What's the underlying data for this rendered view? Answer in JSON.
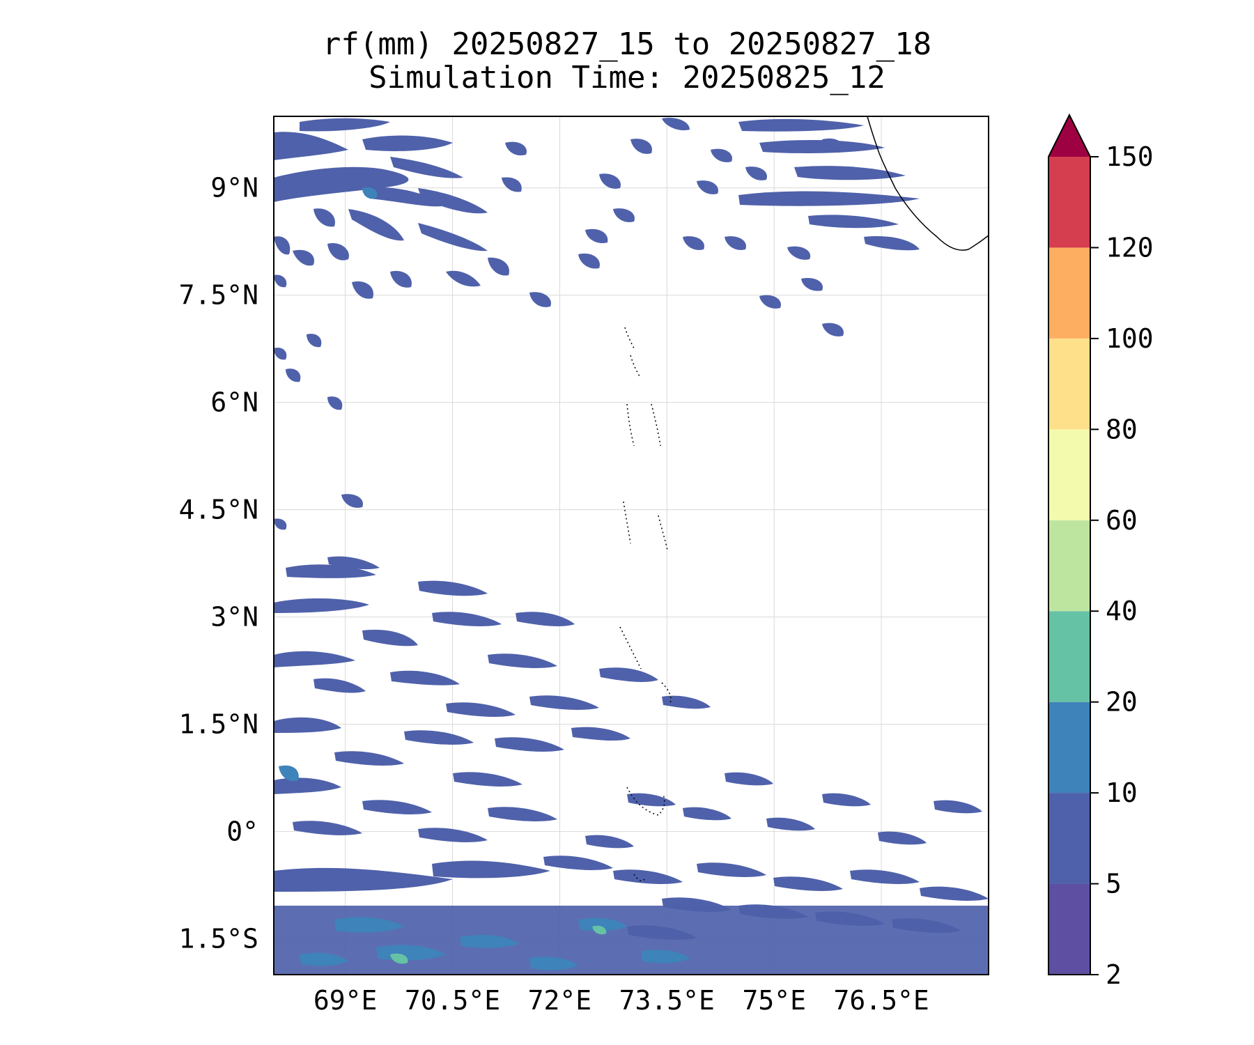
{
  "figure": {
    "title_line1": "rf(mm) 20250827_15 to 20250827_18",
    "title_line2": "Simulation Time: 20250825_12"
  },
  "map": {
    "lon_range": [
      68.0,
      78.0
    ],
    "lat_range": [
      -2.0,
      10.0
    ],
    "gridlines": true,
    "lon_ticks": [
      {
        "value": 69.0,
        "label": "69°E"
      },
      {
        "value": 70.5,
        "label": "70.5°E"
      },
      {
        "value": 72.0,
        "label": "72°E"
      },
      {
        "value": 73.5,
        "label": "73.5°E"
      },
      {
        "value": 75.0,
        "label": "75°E"
      },
      {
        "value": 76.5,
        "label": "76.5°E"
      }
    ],
    "lat_ticks": [
      {
        "value": 9.0,
        "label": "9°N"
      },
      {
        "value": 7.5,
        "label": "7.5°N"
      },
      {
        "value": 6.0,
        "label": "6°N"
      },
      {
        "value": 4.5,
        "label": "4.5°N"
      },
      {
        "value": 3.0,
        "label": "3°N"
      },
      {
        "value": 1.5,
        "label": "1.5°N"
      },
      {
        "value": 0.0,
        "label": "0°"
      },
      {
        "value": -1.5,
        "label": "1.5°S"
      }
    ]
  },
  "colorbar": {
    "levels": [
      {
        "label": "2",
        "color": "#5e4fa2"
      },
      {
        "label": "5",
        "color": "#4f61aa"
      },
      {
        "label": "10",
        "color": "#3e83b9"
      },
      {
        "label": "20",
        "color": "#66c2a5"
      },
      {
        "label": "40",
        "color": "#bee5a0"
      },
      {
        "label": "60",
        "color": "#f4faad"
      },
      {
        "label": "80",
        "color": "#fee08b"
      },
      {
        "label": "100",
        "color": "#fdae61"
      },
      {
        "label": "120",
        "color": "#d53e4f"
      },
      {
        "label": "150",
        "color": ""
      }
    ],
    "extend_color": "#9e0142"
  }
}
